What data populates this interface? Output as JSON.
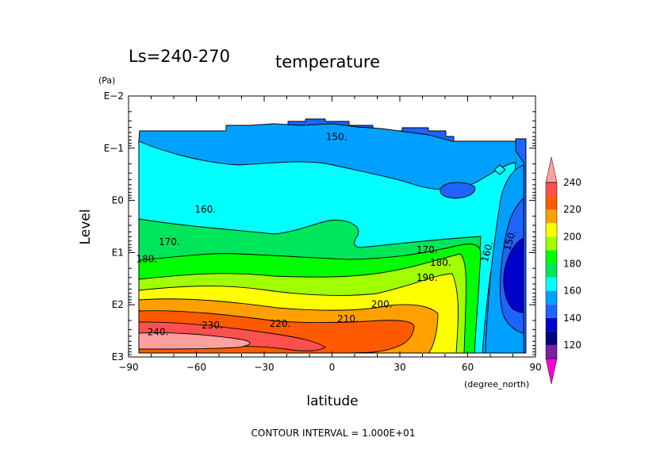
{
  "title_left": "Ls=240-270",
  "title_right": "temperature",
  "footer": "CONTOUR INTERVAL = 1.000E+01",
  "chart_data": {
    "type": "heatmap",
    "variable": "temperature",
    "xlabel": "latitude",
    "xunit": "(degree_north)",
    "ylabel": "Level",
    "yunit": "(Pa)",
    "xlim": [
      -90,
      90
    ],
    "ylim": [
      "E3",
      "E-2"
    ],
    "ylog": true,
    "x_ticks": [
      "−90",
      "−60",
      "−30",
      "0",
      "30",
      "60",
      "90"
    ],
    "x_tick_values": [
      -90,
      -60,
      -30,
      0,
      30,
      60,
      90
    ],
    "y_ticks": [
      "E3",
      "E2",
      "E1",
      "E0",
      "E−1",
      "E−2"
    ],
    "y_tick_values": [
      1000,
      100,
      10,
      1,
      0.1,
      0.01
    ],
    "contour_interval": 10,
    "colorbar": {
      "ticks": [
        "120",
        "140",
        "160",
        "180",
        "200",
        "220",
        "240"
      ],
      "levels": [
        110,
        120,
        130,
        140,
        150,
        160,
        170,
        180,
        190,
        200,
        210,
        220,
        230,
        240
      ],
      "colors": [
        "#ff00d7",
        "#7a1fa0",
        "#00007f",
        "#0000cd",
        "#1e64ff",
        "#00a0ff",
        "#00ffff",
        "#00e65a",
        "#00ff00",
        "#a0ff00",
        "#ffff00",
        "#ffa000",
        "#ff5a00",
        "#ff5050",
        "#ffa0a0"
      ]
    },
    "contour_labels": [
      {
        "text": "150.",
        "lat": 2,
        "p": 0.07
      },
      {
        "text": "160.",
        "lat": -56,
        "p": 1.7
      },
      {
        "text": "170.",
        "lat": -72,
        "p": 7.2
      },
      {
        "text": "180.",
        "lat": -82,
        "p": 15.4
      },
      {
        "text": "170.",
        "lat": 42,
        "p": 10.3
      },
      {
        "text": "180.",
        "lat": 48,
        "p": 18
      },
      {
        "text": "190.",
        "lat": 42,
        "p": 35
      },
      {
        "text": "200.",
        "lat": 22,
        "p": 113
      },
      {
        "text": "210.",
        "lat": 7,
        "p": 215
      },
      {
        "text": "220.",
        "lat": -23,
        "p": 265
      },
      {
        "text": "230.",
        "lat": -53,
        "p": 285
      },
      {
        "text": "240.",
        "lat": -77,
        "p": 380
      },
      {
        "text": "160.",
        "lat": 70,
        "p": 10
      },
      {
        "text": "150.",
        "lat": 80,
        "p": 6
      }
    ]
  }
}
